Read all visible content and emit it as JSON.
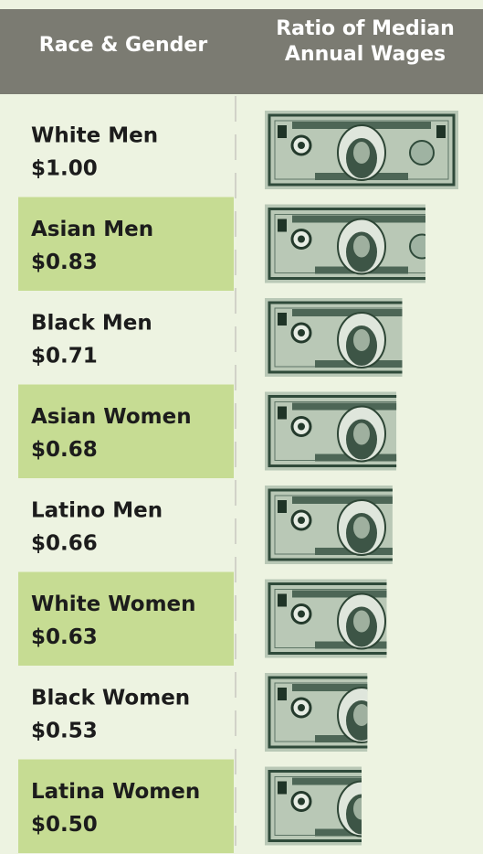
{
  "chart_data": {
    "type": "bar",
    "category_header": "Race & Gender",
    "value_header": "Ratio of Median Annual Wages",
    "categories": [
      "White Men",
      "Asian Men",
      "Black Men",
      "Asian Women",
      "Latino Men",
      "White Women",
      "Black Women",
      "Latina Women"
    ],
    "values": [
      1.0,
      0.83,
      0.71,
      0.68,
      0.66,
      0.63,
      0.53,
      0.5
    ],
    "value_labels": [
      "$1.00",
      "$0.83",
      "$0.71",
      "$0.68",
      "$0.66",
      "$0.63",
      "$0.53",
      "$0.50"
    ],
    "color": "#b9c8b6"
  }
}
